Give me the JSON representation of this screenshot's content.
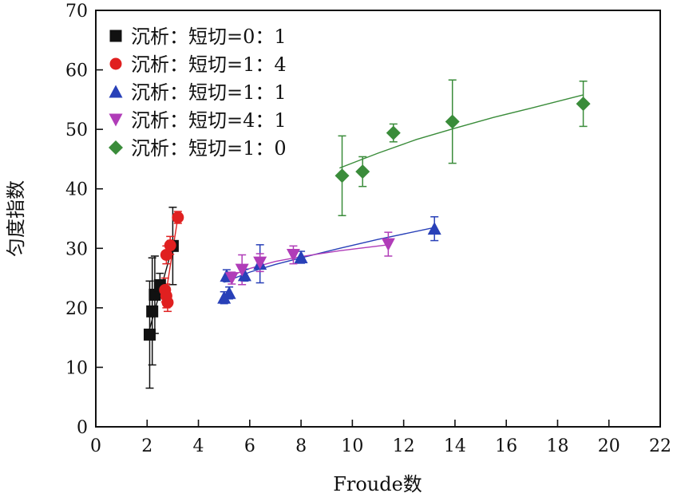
{
  "chart_data": {
    "type": "scatter",
    "title": "",
    "xlabel": "Froude数",
    "ylabel": "匀度指数",
    "xlim": [
      0,
      22
    ],
    "ylim": [
      0,
      70
    ],
    "xticks": [
      "0",
      "2",
      "4",
      "6",
      "8",
      "10",
      "12",
      "14",
      "16",
      "18",
      "20",
      "22"
    ],
    "yticks": [
      "0",
      "10",
      "20",
      "30",
      "40",
      "50",
      "60",
      "70"
    ],
    "grid": false,
    "legend_position": "top-left",
    "series": [
      {
        "name": "沉析：短切=0：1",
        "marker": "square",
        "color": "#111111",
        "points": [
          {
            "x": 2.1,
            "y": 15.5,
            "err": 9
          },
          {
            "x": 2.2,
            "y": 19.4,
            "err": 9
          },
          {
            "x": 2.3,
            "y": 22.2,
            "err": 6.5
          },
          {
            "x": 2.5,
            "y": 23.8,
            "err": 2
          },
          {
            "x": 3.0,
            "y": 30.4,
            "err": 6.5
          }
        ]
      },
      {
        "name": "沉析：短切=1：4",
        "marker": "circle",
        "color": "#e02020",
        "points": [
          {
            "x": 2.7,
            "y": 23.0,
            "err": 2
          },
          {
            "x": 2.75,
            "y": 22.0,
            "err": 2
          },
          {
            "x": 2.8,
            "y": 20.9,
            "err": 1.5
          },
          {
            "x": 2.75,
            "y": 28.9,
            "err": 1.5
          },
          {
            "x": 2.9,
            "y": 30.5,
            "err": 1.5
          },
          {
            "x": 3.2,
            "y": 35.2,
            "err": 1
          }
        ]
      },
      {
        "name": "沉析：短切=1：1",
        "marker": "triangle-up",
        "color": "#2840b8",
        "points": [
          {
            "x": 5.0,
            "y": 21.7,
            "err": 1
          },
          {
            "x": 5.2,
            "y": 22.5,
            "err": 1
          },
          {
            "x": 5.1,
            "y": 25.4,
            "err": 1
          },
          {
            "x": 5.8,
            "y": 25.5,
            "err": 1
          },
          {
            "x": 6.4,
            "y": 27.4,
            "err": 3.2
          },
          {
            "x": 8.0,
            "y": 28.5,
            "err": 1
          },
          {
            "x": 13.2,
            "y": 33.3,
            "err": 2
          }
        ]
      },
      {
        "name": "沉析：短切=4：1",
        "marker": "triangle-down",
        "color": "#b03cb8",
        "points": [
          {
            "x": 5.3,
            "y": 25.0,
            "err": 1
          },
          {
            "x": 5.7,
            "y": 26.4,
            "err": 2.5
          },
          {
            "x": 6.4,
            "y": 27.6,
            "err": 1.5
          },
          {
            "x": 7.7,
            "y": 28.9,
            "err": 1.5
          },
          {
            "x": 11.4,
            "y": 30.7,
            "err": 2
          }
        ]
      },
      {
        "name": "沉析：短切=1：0",
        "marker": "diamond",
        "color": "#3a8c3a",
        "points": [
          {
            "x": 9.6,
            "y": 42.2,
            "err": 6.7
          },
          {
            "x": 10.4,
            "y": 42.9,
            "err": 2.5
          },
          {
            "x": 11.6,
            "y": 49.4,
            "err": 1.5
          },
          {
            "x": 13.9,
            "y": 51.3,
            "err": 7
          },
          {
            "x": 19.0,
            "y": 54.3,
            "err": 3.8
          }
        ]
      }
    ],
    "fit_lines": [
      {
        "series": "沉析：短切=0：1",
        "color": "#111111",
        "kind": "linear",
        "x": [
          2.1,
          3.0
        ],
        "y": [
          16.5,
          30.4
        ]
      },
      {
        "series": "沉析：短切=1：4",
        "color": "#e02020",
        "kind": "linear",
        "x": [
          2.7,
          3.2
        ],
        "y": [
          21.5,
          35.2
        ]
      },
      {
        "series": "沉析：短切=1：1",
        "color": "#2840b8",
        "kind": "power",
        "x": [
          5.0,
          6.0,
          7.0,
          8.0,
          9.5,
          11.0,
          13.2
        ],
        "y": [
          24.3,
          26.0,
          27.3,
          28.4,
          30.0,
          31.5,
          33.5
        ]
      },
      {
        "series": "沉析：短切=4：1",
        "color": "#b03cb8",
        "kind": "power",
        "x": [
          5.2,
          6.0,
          7.0,
          8.0,
          9.5,
          11.4
        ],
        "y": [
          25.3,
          26.6,
          27.8,
          28.6,
          29.6,
          30.6
        ]
      },
      {
        "series": "沉析：短切=1：0",
        "color": "#3a8c3a",
        "kind": "power",
        "x": [
          9.5,
          11.0,
          12.5,
          14.0,
          15.5,
          17.0,
          19.0
        ],
        "y": [
          43.5,
          46.0,
          48.3,
          50.2,
          52.0,
          53.6,
          55.8
        ]
      }
    ]
  }
}
